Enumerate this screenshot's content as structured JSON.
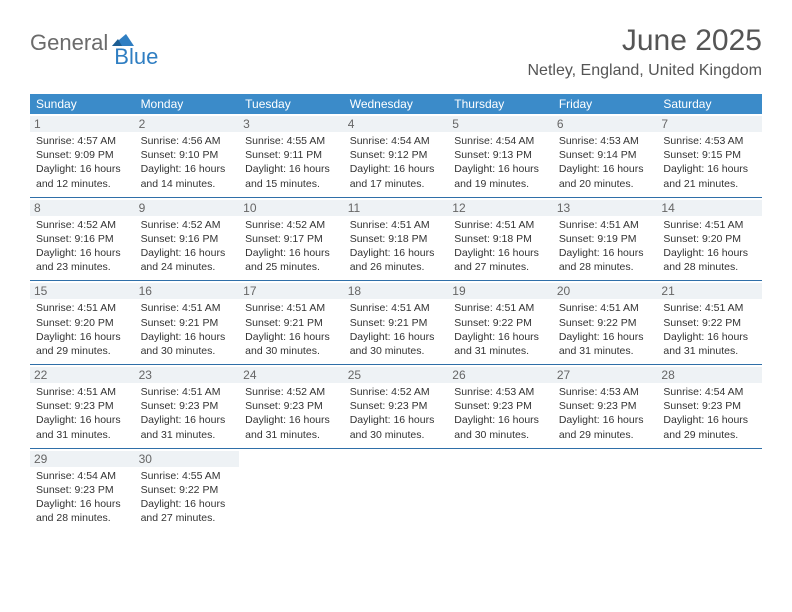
{
  "brand": {
    "part1": "General",
    "part2": "Blue"
  },
  "title": "June 2025",
  "location": "Netley, England, United Kingdom",
  "colors": {
    "header_bg": "#3b8bc9",
    "week_border": "#2f6fa8",
    "daynum_bg": "#eef2f5",
    "logo_gray": "#6b6b6b",
    "logo_blue": "#2f7ec2"
  },
  "weekdays": [
    "Sunday",
    "Monday",
    "Tuesday",
    "Wednesday",
    "Thursday",
    "Friday",
    "Saturday"
  ],
  "days": [
    {
      "n": 1,
      "sunrise": "4:57 AM",
      "sunset": "9:09 PM",
      "daylight": "16 hours and 12 minutes."
    },
    {
      "n": 2,
      "sunrise": "4:56 AM",
      "sunset": "9:10 PM",
      "daylight": "16 hours and 14 minutes."
    },
    {
      "n": 3,
      "sunrise": "4:55 AM",
      "sunset": "9:11 PM",
      "daylight": "16 hours and 15 minutes."
    },
    {
      "n": 4,
      "sunrise": "4:54 AM",
      "sunset": "9:12 PM",
      "daylight": "16 hours and 17 minutes."
    },
    {
      "n": 5,
      "sunrise": "4:54 AM",
      "sunset": "9:13 PM",
      "daylight": "16 hours and 19 minutes."
    },
    {
      "n": 6,
      "sunrise": "4:53 AM",
      "sunset": "9:14 PM",
      "daylight": "16 hours and 20 minutes."
    },
    {
      "n": 7,
      "sunrise": "4:53 AM",
      "sunset": "9:15 PM",
      "daylight": "16 hours and 21 minutes."
    },
    {
      "n": 8,
      "sunrise": "4:52 AM",
      "sunset": "9:16 PM",
      "daylight": "16 hours and 23 minutes."
    },
    {
      "n": 9,
      "sunrise": "4:52 AM",
      "sunset": "9:16 PM",
      "daylight": "16 hours and 24 minutes."
    },
    {
      "n": 10,
      "sunrise": "4:52 AM",
      "sunset": "9:17 PM",
      "daylight": "16 hours and 25 minutes."
    },
    {
      "n": 11,
      "sunrise": "4:51 AM",
      "sunset": "9:18 PM",
      "daylight": "16 hours and 26 minutes."
    },
    {
      "n": 12,
      "sunrise": "4:51 AM",
      "sunset": "9:18 PM",
      "daylight": "16 hours and 27 minutes."
    },
    {
      "n": 13,
      "sunrise": "4:51 AM",
      "sunset": "9:19 PM",
      "daylight": "16 hours and 28 minutes."
    },
    {
      "n": 14,
      "sunrise": "4:51 AM",
      "sunset": "9:20 PM",
      "daylight": "16 hours and 28 minutes."
    },
    {
      "n": 15,
      "sunrise": "4:51 AM",
      "sunset": "9:20 PM",
      "daylight": "16 hours and 29 minutes."
    },
    {
      "n": 16,
      "sunrise": "4:51 AM",
      "sunset": "9:21 PM",
      "daylight": "16 hours and 30 minutes."
    },
    {
      "n": 17,
      "sunrise": "4:51 AM",
      "sunset": "9:21 PM",
      "daylight": "16 hours and 30 minutes."
    },
    {
      "n": 18,
      "sunrise": "4:51 AM",
      "sunset": "9:21 PM",
      "daylight": "16 hours and 30 minutes."
    },
    {
      "n": 19,
      "sunrise": "4:51 AM",
      "sunset": "9:22 PM",
      "daylight": "16 hours and 31 minutes."
    },
    {
      "n": 20,
      "sunrise": "4:51 AM",
      "sunset": "9:22 PM",
      "daylight": "16 hours and 31 minutes."
    },
    {
      "n": 21,
      "sunrise": "4:51 AM",
      "sunset": "9:22 PM",
      "daylight": "16 hours and 31 minutes."
    },
    {
      "n": 22,
      "sunrise": "4:51 AM",
      "sunset": "9:23 PM",
      "daylight": "16 hours and 31 minutes."
    },
    {
      "n": 23,
      "sunrise": "4:51 AM",
      "sunset": "9:23 PM",
      "daylight": "16 hours and 31 minutes."
    },
    {
      "n": 24,
      "sunrise": "4:52 AM",
      "sunset": "9:23 PM",
      "daylight": "16 hours and 31 minutes."
    },
    {
      "n": 25,
      "sunrise": "4:52 AM",
      "sunset": "9:23 PM",
      "daylight": "16 hours and 30 minutes."
    },
    {
      "n": 26,
      "sunrise": "4:53 AM",
      "sunset": "9:23 PM",
      "daylight": "16 hours and 30 minutes."
    },
    {
      "n": 27,
      "sunrise": "4:53 AM",
      "sunset": "9:23 PM",
      "daylight": "16 hours and 29 minutes."
    },
    {
      "n": 28,
      "sunrise": "4:54 AM",
      "sunset": "9:23 PM",
      "daylight": "16 hours and 29 minutes."
    },
    {
      "n": 29,
      "sunrise": "4:54 AM",
      "sunset": "9:23 PM",
      "daylight": "16 hours and 28 minutes."
    },
    {
      "n": 30,
      "sunrise": "4:55 AM",
      "sunset": "9:22 PM",
      "daylight": "16 hours and 27 minutes."
    }
  ],
  "labels": {
    "sunrise": "Sunrise:",
    "sunset": "Sunset:",
    "daylight": "Daylight:"
  },
  "layout": {
    "start_weekday": 0,
    "rows": 5,
    "cols": 7
  }
}
